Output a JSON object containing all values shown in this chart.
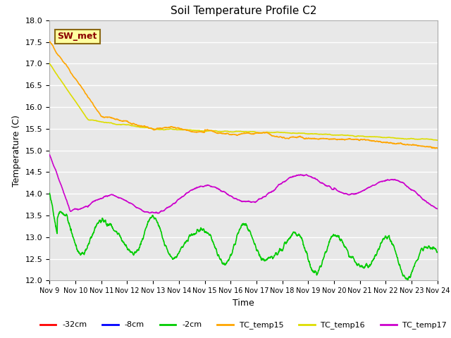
{
  "title": "Soil Temperature Profile C2",
  "xlabel": "Time",
  "ylabel": "Temperature (C)",
  "ylim": [
    12.0,
    18.0
  ],
  "yticks": [
    12.0,
    12.5,
    13.0,
    13.5,
    14.0,
    14.5,
    15.0,
    15.5,
    16.0,
    16.5,
    17.0,
    17.5,
    18.0
  ],
  "x_tick_labels": [
    "Nov 9",
    "Nov 10",
    "Nov 11",
    "Nov 12",
    "Nov 13",
    "Nov 14",
    "Nov 15",
    "Nov 16",
    "Nov 17",
    "Nov 18",
    "Nov 19",
    "Nov 20",
    "Nov 21",
    "Nov 22",
    "Nov 23",
    "Nov 24"
  ],
  "axes_facecolor": "#e8e8e8",
  "grid_color": "white",
  "series": {
    "TC_temp15": {
      "color": "#FFA500",
      "linewidth": 1.2
    },
    "TC_temp16": {
      "color": "#DDDD00",
      "linewidth": 1.2
    },
    "TC_temp17": {
      "color": "#CC00CC",
      "linewidth": 1.2
    },
    "-2cm": {
      "color": "#00CC00",
      "linewidth": 1.2
    },
    "-8cm": {
      "color": "#0000FF",
      "linewidth": 1.2
    },
    "-32cm": {
      "color": "#FF0000",
      "linewidth": 1.2
    }
  },
  "annotation": {
    "text": "SW_met",
    "fontsize": 9,
    "color": "#8B0000",
    "fontweight": "bold",
    "facecolor": "#FFFFA0",
    "edgecolor": "#8B6914"
  },
  "legend": {
    "labels": [
      "-32cm",
      "-8cm",
      "-2cm",
      "TC_temp15",
      "TC_temp16",
      "TC_temp17"
    ],
    "colors": [
      "#FF0000",
      "#0000FF",
      "#00CC00",
      "#FFA500",
      "#DDDD00",
      "#CC00CC"
    ]
  }
}
